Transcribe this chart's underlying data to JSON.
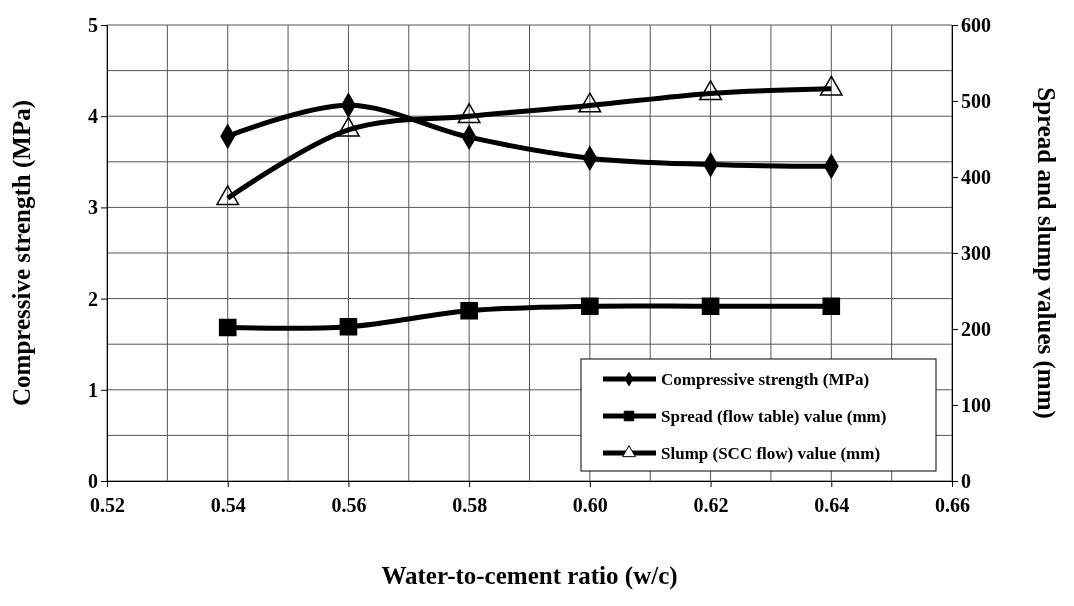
{
  "chart_data": {
    "type": "line",
    "xlabel": "Water-to-cement ratio (w/c)",
    "ylabel": "Compressive strength (MPa)",
    "y2label": "Spread and slump values (mm)",
    "x": [
      0.54,
      0.56,
      0.58,
      0.6,
      0.62,
      0.64
    ],
    "xlim": [
      0.52,
      0.66
    ],
    "xticks": [
      0.52,
      {
        "value": 0.53,
        "label": null
      },
      0.54,
      {
        "value": 0.55,
        "label": null
      },
      0.56,
      {
        "value": 0.57,
        "label": null
      },
      0.58,
      {
        "value": 0.59,
        "label": null
      },
      {
        "value": 0.6,
        "label": "0.60"
      },
      {
        "value": 0.61,
        "label": null
      },
      0.62,
      {
        "value": 0.63,
        "label": null
      },
      0.64,
      {
        "value": 0.65,
        "label": null
      },
      0.66
    ],
    "ylim": [
      0,
      5
    ],
    "yticks": [
      0,
      {
        "value": 0.5,
        "label": null
      },
      1,
      {
        "value": 1.5,
        "label": null
      },
      2,
      {
        "value": 2.5,
        "label": null
      },
      3,
      {
        "value": 3.5,
        "label": null
      },
      4,
      {
        "value": 4.5,
        "label": null
      },
      5
    ],
    "y2lim": [
      0,
      600
    ],
    "y2ticks": [
      0,
      100,
      200,
      300,
      400,
      500,
      600
    ],
    "grid": true,
    "legend": "bottom right",
    "line_style": "solid",
    "series": [
      {
        "name": "Compressive strength (MPa)",
        "color": "#000000",
        "marker": "diamond",
        "values": [
          3.78,
          4.12,
          3.77,
          3.54,
          3.47,
          3.45
        ]
      },
      {
        "name": "Spread (flow table) value (mm)",
        "color": "#000000",
        "marker": "square",
        "axis": "y2",
        "values": [
          202,
          203,
          224,
          230,
          230,
          230
        ]
      },
      {
        "name": "Slump (SCC flow) value (mm)",
        "color": "#000000",
        "marker": "triangle",
        "axis": "y2",
        "values": [
          372,
          462,
          480,
          494,
          510,
          516
        ]
      }
    ]
  }
}
